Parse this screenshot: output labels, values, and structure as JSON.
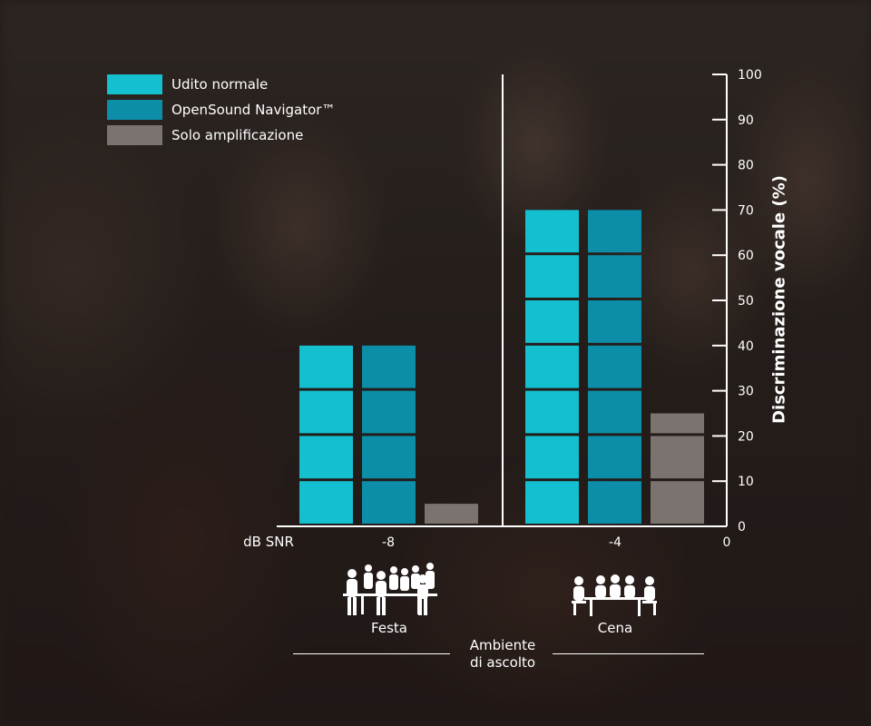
{
  "colors": {
    "normal_hearing": "#14bfd0",
    "opensound": "#0d8ea8",
    "amplification": "#7a7370"
  },
  "legend": {
    "items": [
      {
        "label": "Udito normale",
        "color": "#14bfd0"
      },
      {
        "label": "OpenSound Navigator™",
        "color": "#0d8ea8"
      },
      {
        "label": "Solo amplificazione",
        "color": "#7a7370"
      }
    ]
  },
  "chart_data": {
    "type": "bar",
    "title": "",
    "ylabel": "Discriminazione vocale (%)",
    "xlabel": "dB SNR",
    "ylim": [
      0,
      100
    ],
    "yticks": [
      0,
      10,
      20,
      30,
      40,
      50,
      60,
      70,
      80,
      90,
      100
    ],
    "xticks": [
      "-8",
      "-4",
      "0"
    ],
    "categories": [
      "-8",
      "-4"
    ],
    "series": [
      {
        "name": "Udito normale",
        "values": [
          40,
          70
        ]
      },
      {
        "name": "OpenSound Navigator™",
        "values": [
          40,
          70
        ]
      },
      {
        "name": "Solo amplificazione",
        "values": [
          5,
          25
        ]
      }
    ],
    "legend_position": "top-left",
    "grid": false
  },
  "environments": {
    "title_line1": "Ambiente",
    "title_line2": "di ascolto",
    "items": [
      {
        "label": "Festa",
        "icon": "party-icon"
      },
      {
        "label": "Cena",
        "icon": "dinner-icon"
      }
    ]
  }
}
